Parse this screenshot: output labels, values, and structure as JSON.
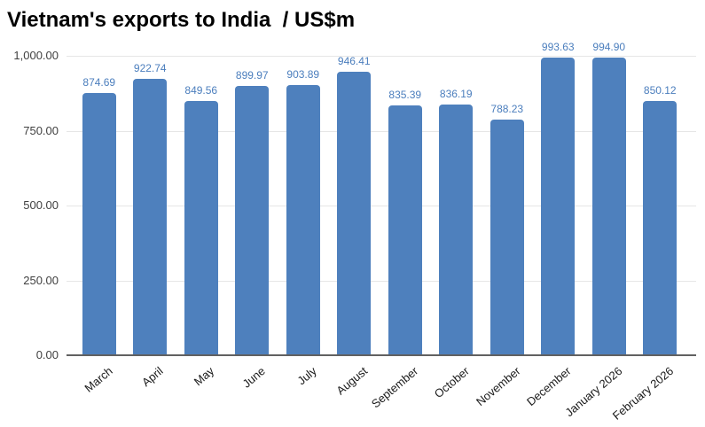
{
  "chart_title": "Vietnam's exports to India  / US$m",
  "colors": {
    "bar": "#4e80bd",
    "value_label": "#4b7ebd",
    "gridline": "#e6e6e6",
    "axis_line": "#616161",
    "y_tick_text": "#404040",
    "x_tick_text": "#1a1a1a",
    "title_text": "#000000",
    "background": "#ffffff"
  },
  "chart_data": {
    "type": "bar",
    "title": "Vietnam's exports to India  / US$m",
    "categories": [
      "March",
      "April",
      "May",
      "June",
      "July",
      "August",
      "September",
      "October",
      "November",
      "December",
      "January 2026",
      "February 2026"
    ],
    "values": [
      874.69,
      922.74,
      849.56,
      899.97,
      903.89,
      946.41,
      835.39,
      836.19,
      788.23,
      993.63,
      994.9,
      850.12
    ],
    "value_labels": [
      "874.69",
      "922.74",
      "849.56",
      "899.97",
      "903.89",
      "946.41",
      "835.39",
      "836.19",
      "788.23",
      "993.63",
      "994.90",
      "850.12"
    ],
    "xlabel": "",
    "ylabel": "",
    "ylim": [
      0,
      1000
    ],
    "yticks": [
      "0.00",
      "250.00",
      "500.00",
      "750.00",
      "1,000.00"
    ],
    "grid": true,
    "legend": "none",
    "bar_label_position": "above",
    "x_tick_rotation_deg": -40
  }
}
